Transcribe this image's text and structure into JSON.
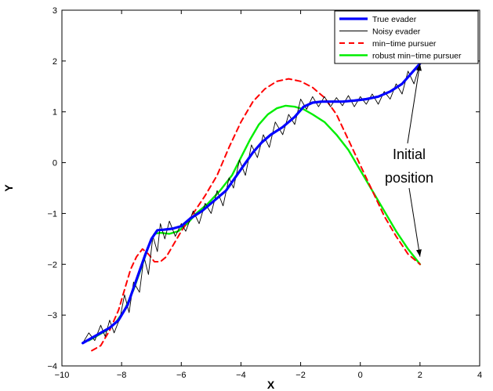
{
  "chart_data": {
    "type": "line",
    "xlabel": "X",
    "ylabel": "Y",
    "xlim": [
      -10,
      4
    ],
    "ylim": [
      -4,
      3
    ],
    "grid": false,
    "xticks": [
      -10,
      -8,
      -6,
      -4,
      -2,
      0,
      2,
      4
    ],
    "yticks": [
      -4,
      -3,
      -2,
      -1,
      0,
      1,
      2,
      3
    ],
    "xtick_labels": [
      "−10",
      "−8",
      "−6",
      "−4",
      "−2",
      "0",
      "2",
      "4"
    ],
    "ytick_labels": [
      "−4",
      "−3",
      "−2",
      "−1",
      "0",
      "1",
      "2",
      "3"
    ],
    "legend_position": "top-right",
    "annotation": {
      "lines": [
        "Initial",
        "position"
      ],
      "arrow_targets": [
        [
          2.0,
          1.95
        ],
        [
          2.0,
          -1.85
        ]
      ]
    },
    "series": [
      {
        "name": "True evader",
        "color": "#0000ff",
        "style": "solid-thick",
        "x": [
          -9.3,
          -9.0,
          -8.7,
          -8.4,
          -8.1,
          -7.8,
          -7.5,
          -7.2,
          -7.0,
          -6.8,
          -6.6,
          -6.3,
          -6.0,
          -5.7,
          -5.3,
          -4.9,
          -4.5,
          -4.2,
          -3.9,
          -3.6,
          -3.3,
          -3.0,
          -2.6,
          -2.2,
          -1.9,
          -1.6,
          -1.3,
          -1.0,
          -0.6,
          -0.2,
          0.2,
          0.6,
          1.0,
          1.4,
          1.7,
          2.0
        ],
        "y": [
          -3.55,
          -3.45,
          -3.35,
          -3.25,
          -3.1,
          -2.8,
          -2.3,
          -1.8,
          -1.5,
          -1.33,
          -1.32,
          -1.3,
          -1.25,
          -1.1,
          -0.95,
          -0.75,
          -0.55,
          -0.3,
          -0.05,
          0.2,
          0.4,
          0.55,
          0.7,
          0.9,
          1.1,
          1.18,
          1.2,
          1.2,
          1.2,
          1.22,
          1.25,
          1.3,
          1.4,
          1.55,
          1.75,
          1.95
        ]
      },
      {
        "name": "Noisy evader",
        "color": "#000000",
        "style": "solid-thin",
        "x": [
          -9.3,
          -9.1,
          -8.9,
          -8.7,
          -8.55,
          -8.4,
          -8.25,
          -8.05,
          -7.9,
          -7.75,
          -7.6,
          -7.4,
          -7.25,
          -7.1,
          -6.95,
          -6.8,
          -6.7,
          -6.55,
          -6.4,
          -6.2,
          -6.0,
          -5.85,
          -5.6,
          -5.4,
          -5.2,
          -5.0,
          -4.8,
          -4.6,
          -4.4,
          -4.25,
          -4.05,
          -3.85,
          -3.65,
          -3.45,
          -3.25,
          -3.05,
          -2.85,
          -2.6,
          -2.4,
          -2.2,
          -2.0,
          -1.8,
          -1.6,
          -1.4,
          -1.2,
          -1.0,
          -0.8,
          -0.6,
          -0.4,
          -0.2,
          0.0,
          0.2,
          0.4,
          0.6,
          0.8,
          1.0,
          1.2,
          1.4,
          1.6,
          1.8,
          2.0
        ],
        "y": [
          -3.55,
          -3.35,
          -3.5,
          -3.2,
          -3.42,
          -3.1,
          -3.35,
          -3.05,
          -2.6,
          -2.95,
          -2.35,
          -2.55,
          -1.85,
          -2.2,
          -1.45,
          -1.75,
          -1.2,
          -1.5,
          -1.15,
          -1.45,
          -1.2,
          -1.35,
          -0.95,
          -1.2,
          -0.8,
          -1.0,
          -0.55,
          -0.85,
          -0.3,
          -0.5,
          0.05,
          -0.25,
          0.35,
          0.1,
          0.55,
          0.3,
          0.8,
          0.55,
          0.95,
          0.75,
          1.25,
          1.05,
          1.3,
          1.1,
          1.3,
          1.1,
          1.28,
          1.12,
          1.32,
          1.1,
          1.3,
          1.15,
          1.35,
          1.15,
          1.4,
          1.25,
          1.55,
          1.35,
          1.8,
          1.55,
          1.95
        ]
      },
      {
        "name": "min−time pursuer",
        "color": "#ff0000",
        "style": "dashed",
        "x": [
          -9.0,
          -8.7,
          -8.4,
          -8.1,
          -7.9,
          -7.7,
          -7.5,
          -7.3,
          -7.1,
          -6.9,
          -6.7,
          -6.5,
          -6.3,
          -6.0,
          -5.6,
          -5.2,
          -4.8,
          -4.4,
          -4.0,
          -3.6,
          -3.2,
          -2.8,
          -2.4,
          -2.0,
          -1.6,
          -1.2,
          -0.8,
          -0.4,
          0.0,
          0.4,
          0.8,
          1.2,
          1.6,
          2.0
        ],
        "y": [
          -3.7,
          -3.6,
          -3.3,
          -2.9,
          -2.5,
          -2.1,
          -1.85,
          -1.7,
          -1.8,
          -1.95,
          -1.95,
          -1.85,
          -1.65,
          -1.35,
          -1.0,
          -0.65,
          -0.25,
          0.3,
          0.8,
          1.2,
          1.45,
          1.6,
          1.65,
          1.6,
          1.48,
          1.28,
          0.95,
          0.45,
          -0.05,
          -0.55,
          -1.05,
          -1.45,
          -1.8,
          -2.0
        ]
      },
      {
        "name": "robust min−time pursuer",
        "color": "#00ee00",
        "style": "solid",
        "x": [
          -9.1,
          -8.8,
          -8.5,
          -8.2,
          -7.9,
          -7.6,
          -7.3,
          -7.1,
          -6.9,
          -6.7,
          -6.4,
          -6.1,
          -5.8,
          -5.5,
          -5.1,
          -4.7,
          -4.3,
          -4.0,
          -3.7,
          -3.4,
          -3.1,
          -2.8,
          -2.5,
          -2.2,
          -1.9,
          -1.6,
          -1.2,
          -0.8,
          -0.4,
          0.0,
          0.4,
          0.8,
          1.2,
          1.6,
          2.0
        ],
        "y": [
          -3.5,
          -3.4,
          -3.3,
          -3.15,
          -2.9,
          -2.5,
          -2.0,
          -1.65,
          -1.4,
          -1.38,
          -1.4,
          -1.35,
          -1.2,
          -1.0,
          -0.8,
          -0.55,
          -0.25,
          0.1,
          0.45,
          0.75,
          0.95,
          1.07,
          1.12,
          1.1,
          1.05,
          0.95,
          0.8,
          0.55,
          0.25,
          -0.15,
          -0.55,
          -0.95,
          -1.35,
          -1.7,
          -2.0
        ]
      }
    ]
  }
}
